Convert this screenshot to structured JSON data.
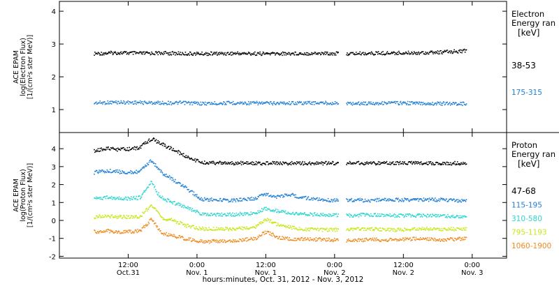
{
  "colors": {
    "black": "#000000",
    "blue": "#1f7fd6",
    "cyan": "#2ad6d0",
    "yellow": "#c8e61a",
    "orange": "#f08a1c"
  },
  "x_axis": {
    "title": "hours:minutes, Oct. 31, 2012 - Nov.  3, 2012",
    "ticks": [
      {
        "t": 12,
        "time": "12:00",
        "date": "Oct.31"
      },
      {
        "t": 24,
        "time": "0:00",
        "date": "Nov. 1"
      },
      {
        "t": 36,
        "time": "12:00",
        "date": "Nov. 1"
      },
      {
        "t": 48,
        "time": "0:00",
        "date": "Nov. 2"
      },
      {
        "t": 60,
        "time": "12:00",
        "date": "Nov. 2"
      },
      {
        "t": 72,
        "time": "0:00",
        "date": "Nov. 3"
      }
    ]
  },
  "chart_data": [
    {
      "type": "scatter",
      "ylabel_lines": [
        "ACE EPAM",
        "log(Electron Flux)",
        "[1/(cm²s ster MeV)]"
      ],
      "ylim": [
        0.3,
        4.3
      ],
      "yticks": [
        1,
        2,
        3,
        4
      ],
      "xlim": [
        0,
        78
      ],
      "legend": {
        "title": [
          "Electron",
          "Energy ran"
        ],
        "unit": "[keV]"
      },
      "series": [
        {
          "name": "38-53",
          "color": "black",
          "points": [
            [
              6,
              2.72
            ],
            [
              10,
              2.75
            ],
            [
              14,
              2.73
            ],
            [
              18,
              2.74
            ],
            [
              22,
              2.72
            ],
            [
              25,
              2.72
            ],
            [
              30,
              2.73
            ],
            [
              36,
              2.72
            ],
            [
              42,
              2.73
            ],
            [
              47,
              2.73
            ],
            [
              50,
              2.72
            ],
            [
              54,
              2.73
            ],
            [
              58,
              2.74
            ],
            [
              62,
              2.75
            ],
            [
              66,
              2.76
            ],
            [
              70,
              2.8
            ],
            [
              71,
              2.82
            ]
          ]
        },
        {
          "name": "175-315",
          "color": "blue",
          "points": [
            [
              6,
              1.22
            ],
            [
              10,
              1.24
            ],
            [
              14,
              1.23
            ],
            [
              18,
              1.22
            ],
            [
              22,
              1.22
            ],
            [
              25,
              1.2
            ],
            [
              30,
              1.22
            ],
            [
              36,
              1.21
            ],
            [
              42,
              1.22
            ],
            [
              47,
              1.22
            ],
            [
              50,
              1.2
            ],
            [
              54,
              1.21
            ],
            [
              58,
              1.22
            ],
            [
              62,
              1.21
            ],
            [
              66,
              1.2
            ],
            [
              70,
              1.2
            ],
            [
              71,
              1.19
            ]
          ]
        }
      ]
    },
    {
      "type": "scatter",
      "ylabel_lines": [
        "ACE EPAM",
        "log(Proton Flux)",
        "[1/(cm²s ster MeV)]"
      ],
      "ylim": [
        -2.1,
        4.9
      ],
      "yticks": [
        -2,
        -1,
        0,
        1,
        2,
        3,
        4
      ],
      "xlim": [
        0,
        78
      ],
      "legend": {
        "title": [
          "Proton",
          "Energy ran"
        ],
        "unit": "[keV]"
      },
      "series": [
        {
          "name": "47-68",
          "color": "black",
          "points": [
            [
              6,
              3.9
            ],
            [
              8,
              4.05
            ],
            [
              10,
              3.98
            ],
            [
              12,
              4.0
            ],
            [
              14,
              4.1
            ],
            [
              16,
              4.6
            ],
            [
              17,
              4.4
            ],
            [
              18,
              4.25
            ],
            [
              20,
              3.95
            ],
            [
              22,
              3.6
            ],
            [
              24,
              3.35
            ],
            [
              25,
              3.25
            ],
            [
              30,
              3.22
            ],
            [
              36,
              3.22
            ],
            [
              42,
              3.22
            ],
            [
              47,
              3.22
            ],
            [
              50,
              3.22
            ],
            [
              54,
              3.22
            ],
            [
              58,
              3.22
            ],
            [
              62,
              3.22
            ],
            [
              66,
              3.22
            ],
            [
              70,
              3.22
            ],
            [
              71,
              3.22
            ]
          ]
        },
        {
          "name": "115-195",
          "color": "blue",
          "points": [
            [
              6,
              2.7
            ],
            [
              8,
              2.8
            ],
            [
              10,
              2.75
            ],
            [
              12,
              2.7
            ],
            [
              14,
              2.75
            ],
            [
              16,
              3.4
            ],
            [
              17,
              2.95
            ],
            [
              18,
              2.65
            ],
            [
              20,
              2.25
            ],
            [
              22,
              1.85
            ],
            [
              24,
              1.35
            ],
            [
              25,
              1.2
            ],
            [
              30,
              1.15
            ],
            [
              34,
              1.25
            ],
            [
              36,
              1.5
            ],
            [
              38,
              1.35
            ],
            [
              40,
              1.5
            ],
            [
              42,
              1.3
            ],
            [
              47,
              1.15
            ],
            [
              50,
              1.18
            ],
            [
              54,
              1.15
            ],
            [
              58,
              1.18
            ],
            [
              62,
              1.18
            ],
            [
              66,
              1.18
            ],
            [
              70,
              1.15
            ],
            [
              71,
              1.15
            ]
          ]
        },
        {
          "name": "310-580",
          "color": "cyan",
          "points": [
            [
              6,
              1.25
            ],
            [
              8,
              1.3
            ],
            [
              10,
              1.28
            ],
            [
              12,
              1.25
            ],
            [
              14,
              1.3
            ],
            [
              16,
              2.2
            ],
            [
              17,
              1.55
            ],
            [
              18,
              1.25
            ],
            [
              20,
              1.0
            ],
            [
              22,
              0.75
            ],
            [
              24,
              0.5
            ],
            [
              25,
              0.35
            ],
            [
              30,
              0.35
            ],
            [
              34,
              0.45
            ],
            [
              36,
              0.7
            ],
            [
              38,
              0.55
            ],
            [
              40,
              0.45
            ],
            [
              42,
              0.4
            ],
            [
              47,
              0.35
            ],
            [
              50,
              0.3
            ],
            [
              54,
              0.35
            ],
            [
              58,
              0.3
            ],
            [
              62,
              0.3
            ],
            [
              66,
              0.3
            ],
            [
              70,
              0.25
            ],
            [
              71,
              0.25
            ]
          ]
        },
        {
          "name": "795-1193",
          "color": "yellow",
          "points": [
            [
              6,
              0.22
            ],
            [
              8,
              0.28
            ],
            [
              10,
              0.25
            ],
            [
              12,
              0.22
            ],
            [
              14,
              0.25
            ],
            [
              16,
              0.9
            ],
            [
              17,
              0.45
            ],
            [
              18,
              0.15
            ],
            [
              20,
              0.0
            ],
            [
              22,
              -0.25
            ],
            [
              24,
              -0.4
            ],
            [
              25,
              -0.45
            ],
            [
              30,
              -0.45
            ],
            [
              34,
              -0.35
            ],
            [
              36,
              0.1
            ],
            [
              38,
              -0.2
            ],
            [
              40,
              -0.35
            ],
            [
              42,
              -0.45
            ],
            [
              47,
              -0.5
            ],
            [
              50,
              -0.45
            ],
            [
              54,
              -0.45
            ],
            [
              58,
              -0.5
            ],
            [
              62,
              -0.45
            ],
            [
              66,
              -0.45
            ],
            [
              70,
              -0.45
            ],
            [
              71,
              -0.45
            ]
          ]
        },
        {
          "name": "1060-1900",
          "color": "orange",
          "points": [
            [
              6,
              -0.6
            ],
            [
              8,
              -0.55
            ],
            [
              10,
              -0.6
            ],
            [
              12,
              -0.6
            ],
            [
              14,
              -0.55
            ],
            [
              16,
              0.1
            ],
            [
              17,
              -0.35
            ],
            [
              18,
              -0.7
            ],
            [
              20,
              -0.85
            ],
            [
              22,
              -1.0
            ],
            [
              24,
              -1.1
            ],
            [
              25,
              -1.15
            ],
            [
              30,
              -1.1
            ],
            [
              34,
              -1.0
            ],
            [
              36,
              -0.6
            ],
            [
              38,
              -0.9
            ],
            [
              40,
              -1.0
            ],
            [
              42,
              -1.0
            ],
            [
              47,
              -1.05
            ],
            [
              50,
              -1.1
            ],
            [
              54,
              -1.05
            ],
            [
              58,
              -1.05
            ],
            [
              62,
              -1.0
            ],
            [
              66,
              -1.05
            ],
            [
              70,
              -1.0
            ],
            [
              71,
              -1.0
            ]
          ]
        }
      ]
    }
  ]
}
